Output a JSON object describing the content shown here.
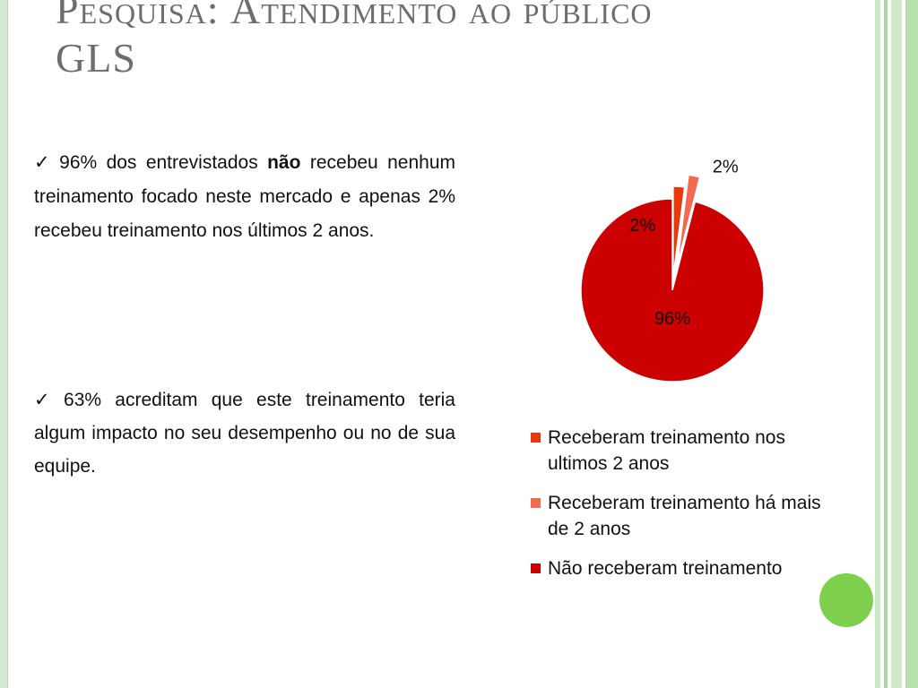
{
  "slide": {
    "title_line1_a": "P",
    "title_line1_b": "esquisa: ",
    "title_line1_c": "A",
    "title_line1_d": "tendimento ao público",
    "title_line2": "GLS"
  },
  "bullets": [
    {
      "pre": "96% dos entrevistados ",
      "bold": "não",
      "post": " recebeu nenhum treinamento focado neste mercado e apenas 2% recebeu treinamento nos últimos 2 anos."
    },
    {
      "text": "63% acreditam que este treinamento teria algum impacto no seu desempenho ou no de sua equipe."
    }
  ],
  "check_glyph": "✓",
  "chart_data": {
    "type": "pie",
    "categories": [
      "Receberam treinamento nos ultimos 2 anos",
      "Receberam treinamento há mais de 2 anos",
      "Não receberam treinamento"
    ],
    "values": [
      2,
      2,
      96
    ],
    "data_labels": [
      "2%",
      "2%",
      "96%"
    ],
    "colors": [
      "#e8380d",
      "#f26a4f",
      "#cc0000"
    ],
    "legend_position": "bottom"
  },
  "decor": {
    "accent_green": "#7fd04e"
  }
}
